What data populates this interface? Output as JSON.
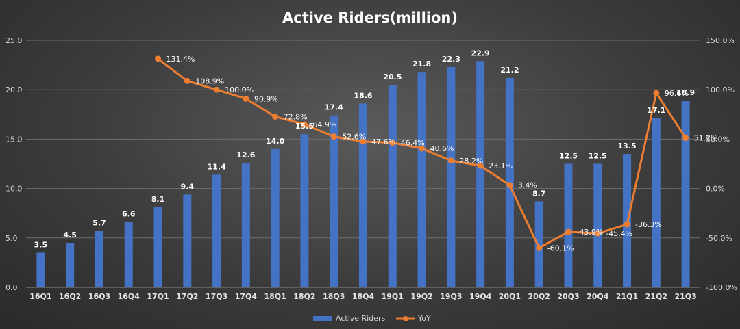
{
  "chart_data": {
    "type": "bar",
    "title": "Active Riders(million)",
    "categories": [
      "16Q1",
      "16Q2",
      "16Q3",
      "16Q4",
      "17Q1",
      "17Q2",
      "17Q3",
      "17Q4",
      "18Q1",
      "18Q2",
      "18Q3",
      "18Q4",
      "19Q1",
      "19Q2",
      "19Q3",
      "19Q4",
      "20Q1",
      "20Q2",
      "20Q3",
      "20Q4",
      "21Q1",
      "21Q2",
      "21Q3"
    ],
    "series": [
      {
        "name": "Active Riders",
        "type": "bar",
        "axis": "left",
        "color": "#4472c4",
        "values": [
          3.5,
          4.5,
          5.7,
          6.6,
          8.1,
          9.4,
          11.4,
          12.6,
          14.0,
          15.5,
          17.4,
          18.6,
          20.5,
          21.8,
          22.3,
          22.9,
          21.2,
          8.7,
          12.5,
          12.5,
          13.5,
          17.1,
          18.9
        ],
        "labels": [
          "3.5",
          "4.5",
          "5.7",
          "6.6",
          "8.1",
          "9.4",
          "11.4",
          "12.6",
          "14.0",
          "15.5",
          "17.4",
          "18.6",
          "20.5",
          "21.8",
          "22.3",
          "22.9",
          "21.2",
          "8.7",
          "12.5",
          "12.5",
          "13.5",
          "17.1",
          "18.9"
        ]
      },
      {
        "name": "YoY",
        "type": "line",
        "axis": "right",
        "color": "#ed7d31",
        "values": [
          null,
          null,
          null,
          null,
          131.4,
          108.9,
          100.0,
          90.9,
          72.8,
          64.9,
          52.6,
          47.6,
          46.4,
          40.6,
          28.2,
          23.1,
          3.4,
          -60.1,
          -43.9,
          -45.4,
          -36.3,
          96.6,
          51.2
        ],
        "labels": [
          null,
          null,
          null,
          null,
          "131.4%",
          "108.9%",
          "100.0%",
          "90.9%",
          "72.8%",
          "64.9%",
          "52.6%",
          "47.6%",
          "46.4%",
          "40.6%",
          "28.2%",
          "23.1%",
          "3.4%",
          "-60.1%",
          "-43.9%",
          "-45.4%",
          "-36.3%",
          "96.6%",
          "51.2%"
        ]
      }
    ],
    "y_left": {
      "min": 0,
      "max": 25,
      "ticks": [
        "0.0",
        "5.0",
        "10.0",
        "15.0",
        "20.0",
        "25.0"
      ]
    },
    "y_right": {
      "min": -100,
      "max": 150,
      "ticks": [
        "-100.0%",
        "-50.0%",
        "0.0%",
        "50.0%",
        "100.0%",
        "150.0%"
      ]
    },
    "grid": true,
    "legend": {
      "position": "bottom",
      "entries": [
        "Active Riders",
        "YoY"
      ]
    }
  }
}
